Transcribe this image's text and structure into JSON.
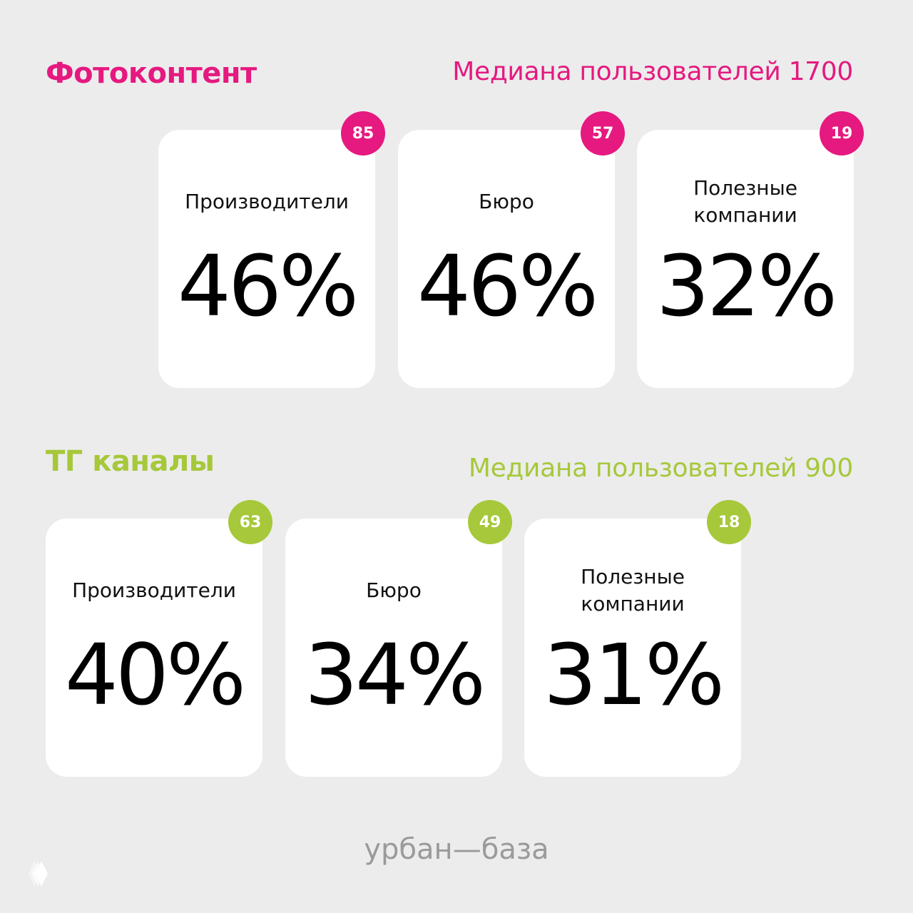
{
  "colors": {
    "pink": "#e5197f",
    "green": "#a6c83a",
    "background": "#ececec"
  },
  "sections": [
    {
      "title": "Фотоконтент",
      "median": "Медиана пользователей 1700",
      "cards": [
        {
          "badge": "85",
          "label": "Производители",
          "percent": "46%"
        },
        {
          "badge": "57",
          "label": "Бюро",
          "percent": "46%"
        },
        {
          "badge": "19",
          "label": "Полезные\nкомпании",
          "percent": "32%"
        }
      ]
    },
    {
      "title": "ТГ каналы",
      "median": "Медиана пользователей 900",
      "cards": [
        {
          "badge": "63",
          "label": "Производители",
          "percent": "40%"
        },
        {
          "badge": "49",
          "label": "Бюро",
          "percent": "34%"
        },
        {
          "badge": "18",
          "label": "Полезные\nкомпании",
          "percent": "31%"
        }
      ]
    }
  ],
  "footer": {
    "brand": "урбан—база",
    "logo_icon": "diamond-stack-icon"
  }
}
